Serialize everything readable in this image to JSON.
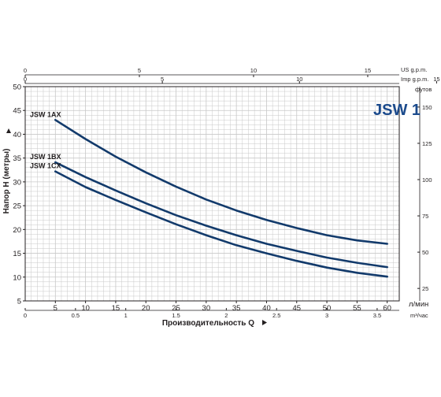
{
  "chart_data": {
    "type": "line",
    "title": "JSW 1",
    "xlabel": "Производительность Q",
    "ylabel": "Напор H (метры)",
    "x_unit": "л/мин",
    "xlim": [
      0,
      62
    ],
    "ylim": [
      5,
      50
    ],
    "x_ticks": [
      5,
      10,
      15,
      20,
      25,
      30,
      35,
      40,
      45,
      50,
      55,
      60
    ],
    "y_ticks": [
      5,
      10,
      15,
      20,
      25,
      30,
      35,
      40,
      45,
      50
    ],
    "grid": true,
    "series": [
      {
        "name": "JSW 1AX",
        "x": [
          5,
          10,
          15,
          20,
          25,
          30,
          35,
          40,
          45,
          50,
          55,
          60
        ],
        "y": [
          43,
          39,
          35.3,
          32,
          29,
          26.3,
          24,
          22,
          20.3,
          18.8,
          17.7,
          17
        ]
      },
      {
        "name": "JSW 1BX",
        "x": [
          5,
          10,
          15,
          20,
          25,
          30,
          35,
          40,
          45,
          50,
          55,
          60
        ],
        "y": [
          34.1,
          31,
          28.2,
          25.5,
          23,
          20.8,
          18.8,
          17,
          15.5,
          14.1,
          13,
          12.1
        ]
      },
      {
        "name": "JSW 1CX",
        "x": [
          5,
          10,
          15,
          20,
          25,
          30,
          35,
          40,
          45,
          50,
          55,
          60
        ],
        "y": [
          32.2,
          28.9,
          26.2,
          23.6,
          21.1,
          18.8,
          16.7,
          15,
          13.4,
          12,
          10.9,
          10.1
        ]
      }
    ],
    "top_axis_usgpm": {
      "unit": "US g.p.m.",
      "ticks": [
        0,
        5,
        10,
        15
      ]
    },
    "top_axis_impgpm": {
      "unit": "Imp g.p.m.",
      "ticks": [
        0,
        5,
        10,
        15
      ]
    },
    "bottom_axis_m3h": {
      "unit": "m³/час",
      "ticks": [
        0,
        0.5,
        1,
        1.5,
        2,
        2.5,
        3,
        3.5
      ]
    },
    "right_axis_feet": {
      "unit": "футов",
      "ticks": [
        25,
        50,
        75,
        100,
        125,
        150
      ]
    }
  },
  "styles": {
    "line_color": "#123a6b",
    "grid_color": "#c8c8c8",
    "title_color": "#1b4a8c"
  }
}
